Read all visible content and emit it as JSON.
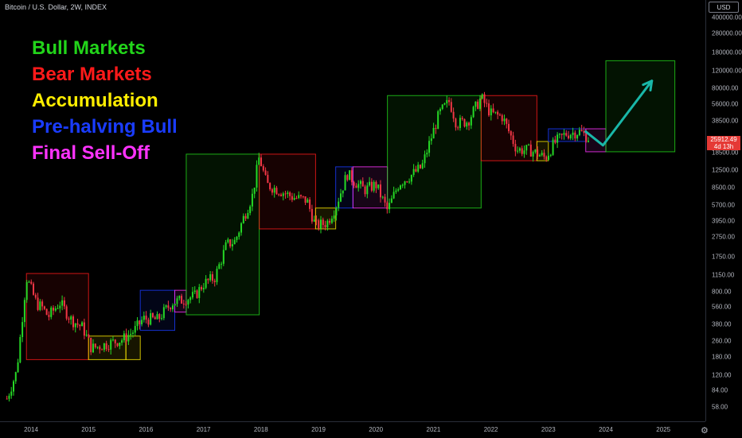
{
  "header": {
    "title": "Bitcoin / U.S. Dollar, 2W, INDEX"
  },
  "price_scale": {
    "currency_button": "USD"
  },
  "last_price": {
    "value": "25912.49",
    "countdown": "4d 13h",
    "color": "#e53935"
  },
  "legend": [
    {
      "label": "Bull Markets",
      "color": "#22d41a"
    },
    {
      "label": "Bear Markets",
      "color": "#ff1a1a"
    },
    {
      "label": "Accumulation",
      "color": "#ffee00"
    },
    {
      "label": "Pre-halving Bull",
      "color": "#1a3cff"
    },
    {
      "label": "Final Sell-Off",
      "color": "#ff33ff"
    }
  ],
  "settings_icon": "gear-icon",
  "chart_data": {
    "type": "candlestick",
    "title": "Bitcoin / U.S. Dollar, 2W, INDEX",
    "scale": "log",
    "y_ticks": [
      "400000.00",
      "280000.00",
      "180000.00",
      "120000.00",
      "80000.00",
      "56000.00",
      "38500.00",
      "25500.00",
      "18500.00",
      "12500.00",
      "8500.00",
      "5700.00",
      "3950.00",
      "2750.00",
      "1750.00",
      "1150.00",
      "800.00",
      "560.00",
      "380.00",
      "260.00",
      "180.00",
      "120.00",
      "84.00",
      "58.00"
    ],
    "x_ticks": [
      "2014",
      "2015",
      "2016",
      "2017",
      "2018",
      "2019",
      "2020",
      "2021",
      "2022",
      "2023",
      "2024",
      "2025"
    ],
    "series_path": [
      [
        2013.58,
        70
      ],
      [
        2013.75,
        130
      ],
      [
        2013.92,
        1100
      ],
      [
        2014.1,
        600
      ],
      [
        2014.2,
        550
      ],
      [
        2014.3,
        450
      ],
      [
        2014.5,
        620
      ],
      [
        2014.7,
        420
      ],
      [
        2014.9,
        350
      ],
      [
        2015.05,
        220
      ],
      [
        2015.3,
        240
      ],
      [
        2015.6,
        270
      ],
      [
        2015.8,
        330
      ],
      [
        2015.95,
        430
      ],
      [
        2016.2,
        420
      ],
      [
        2016.45,
        620
      ],
      [
        2016.6,
        650
      ],
      [
        2016.85,
        720
      ],
      [
        2017.0,
        950
      ],
      [
        2017.2,
        1100
      ],
      [
        2017.4,
        2300
      ],
      [
        2017.55,
        2500
      ],
      [
        2017.7,
        4300
      ],
      [
        2017.85,
        7000
      ],
      [
        2017.97,
        17000
      ],
      [
        2018.1,
        9000
      ],
      [
        2018.3,
        8000
      ],
      [
        2018.55,
        6800
      ],
      [
        2018.8,
        6300
      ],
      [
        2018.95,
        3500
      ],
      [
        2019.15,
        3800
      ],
      [
        2019.3,
        5500
      ],
      [
        2019.5,
        11500
      ],
      [
        2019.6,
        10000
      ],
      [
        2019.8,
        8000
      ],
      [
        2020.0,
        9000
      ],
      [
        2020.2,
        5000
      ],
      [
        2020.4,
        9300
      ],
      [
        2020.6,
        11000
      ],
      [
        2020.8,
        13500
      ],
      [
        2020.95,
        25000
      ],
      [
        2021.1,
        45000
      ],
      [
        2021.28,
        60000
      ],
      [
        2021.4,
        36000
      ],
      [
        2021.6,
        38000
      ],
      [
        2021.83,
        65000
      ],
      [
        2022.0,
        45000
      ],
      [
        2022.2,
        42000
      ],
      [
        2022.45,
        20000
      ],
      [
        2022.7,
        19500
      ],
      [
        2022.95,
        16500
      ],
      [
        2023.1,
        23000
      ],
      [
        2023.3,
        28500
      ],
      [
        2023.55,
        30000
      ],
      [
        2023.7,
        26000
      ]
    ],
    "boxes": [
      {
        "kind": "Bear Markets",
        "x0": 2013.92,
        "x1": 2015.0,
        "y0": 170,
        "y1": 1200
      },
      {
        "kind": "Accumulation",
        "x0": 2015.0,
        "x1": 2015.65,
        "y0": 170,
        "y1": 290
      },
      {
        "kind": "Accumulation",
        "x0": 2015.65,
        "x1": 2015.9,
        "y0": 170,
        "y1": 290
      },
      {
        "kind": "Pre-halving Bull",
        "x0": 2015.9,
        "x1": 2016.5,
        "y0": 330,
        "y1": 820
      },
      {
        "kind": "Final Sell-Off",
        "x0": 2016.5,
        "x1": 2016.7,
        "y0": 500,
        "y1": 820
      },
      {
        "kind": "Bull Markets",
        "x0": 2016.7,
        "x1": 2017.97,
        "y0": 470,
        "y1": 18000
      },
      {
        "kind": "Bear Markets",
        "x0": 2017.97,
        "x1": 2018.95,
        "y0": 3300,
        "y1": 18000
      },
      {
        "kind": "Accumulation",
        "x0": 2018.95,
        "x1": 2019.3,
        "y0": 3300,
        "y1": 5300
      },
      {
        "kind": "Pre-halving Bull",
        "x0": 2019.3,
        "x1": 2019.6,
        "y0": 5300,
        "y1": 13500
      },
      {
        "kind": "Final Sell-Off",
        "x0": 2019.6,
        "x1": 2020.2,
        "y0": 5300,
        "y1": 13500
      },
      {
        "kind": "Bull Markets",
        "x0": 2020.2,
        "x1": 2021.83,
        "y0": 5300,
        "y1": 68000
      },
      {
        "kind": "Bear Markets",
        "x0": 2021.83,
        "x1": 2022.8,
        "y0": 15500,
        "y1": 68000
      },
      {
        "kind": "Accumulation",
        "x0": 2022.8,
        "x1": 2023.0,
        "y0": 15500,
        "y1": 24000
      },
      {
        "kind": "Pre-halving Bull",
        "x0": 2023.0,
        "x1": 2023.65,
        "y0": 24000,
        "y1": 32000
      },
      {
        "kind": "Final Sell-Off",
        "x0": 2023.65,
        "x1": 2024.0,
        "y0": 19000,
        "y1": 32000
      },
      {
        "kind": "Bull Markets",
        "x0": 2024.0,
        "x1": 2025.2,
        "y0": 19000,
        "y1": 150000
      }
    ],
    "projection": [
      [
        2023.65,
        30000
      ],
      [
        2023.95,
        22000
      ],
      [
        2024.8,
        95000
      ]
    ],
    "projection_color": "#19b7a8"
  }
}
